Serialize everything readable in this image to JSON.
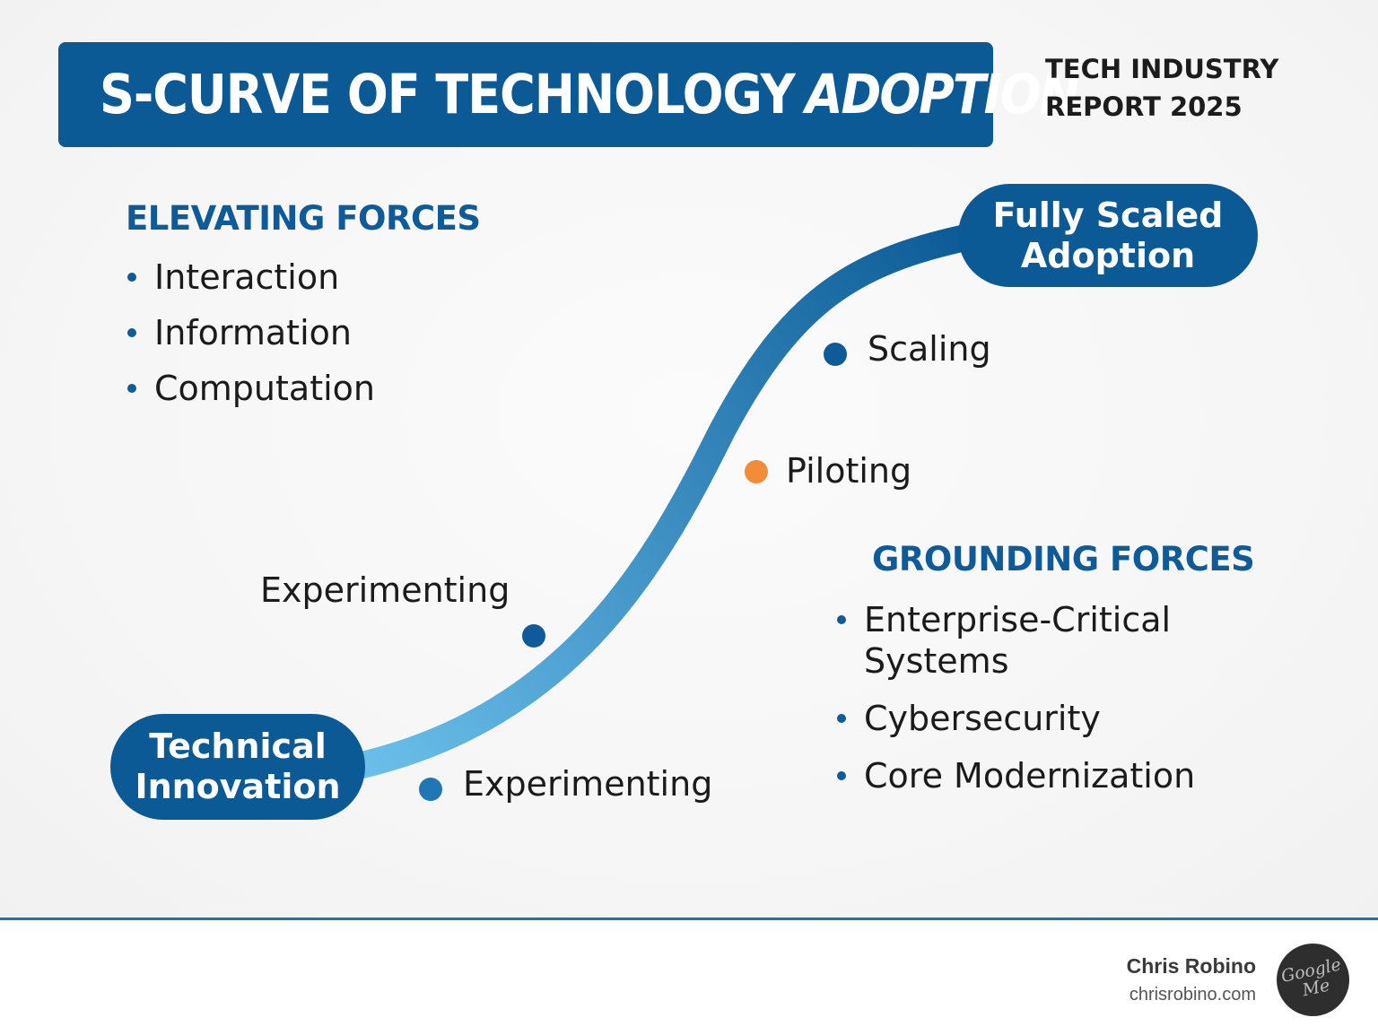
{
  "title": {
    "main": "S-CURVE OF TECHNOLOGY",
    "emphasis": "ADOPTION"
  },
  "report_tag": {
    "line1": "TECH INDUSTRY",
    "line2": "REPORT 2025"
  },
  "elevating_forces": {
    "heading": "ELEVATING FORCES",
    "items": [
      "Interaction",
      "Information",
      "Computation"
    ]
  },
  "grounding_forces": {
    "heading": "GROUNDING FORCES",
    "items": [
      {
        "line1": "Enterprise-Critical",
        "line2": "Systems"
      },
      {
        "line1": "Cybersecurity",
        "line2": ""
      },
      {
        "line1": "Core Modernization",
        "line2": ""
      }
    ]
  },
  "curve": {
    "start": {
      "line1": "Technical",
      "line2": "Innovation"
    },
    "end": {
      "line1": "Fully Scaled",
      "line2": "Adoption"
    },
    "stages": [
      {
        "label": "Experimenting",
        "color": "#1f78b4"
      },
      {
        "label": "Experimenting",
        "color": "#0f5a98"
      },
      {
        "label": "Piloting",
        "color": "#f28c38"
      },
      {
        "label": "Scaling",
        "color": "#0f5a98"
      }
    ],
    "gradient": {
      "start_color": "#6bc0ea",
      "end_color": "#0b5a96"
    }
  },
  "footer": {
    "author_name": "Chris Robino",
    "author_site": "chrisrobino.com",
    "logo_icon": "google-me-logo-icon",
    "logo_text": {
      "line1": "Google",
      "line2": "Me"
    }
  }
}
